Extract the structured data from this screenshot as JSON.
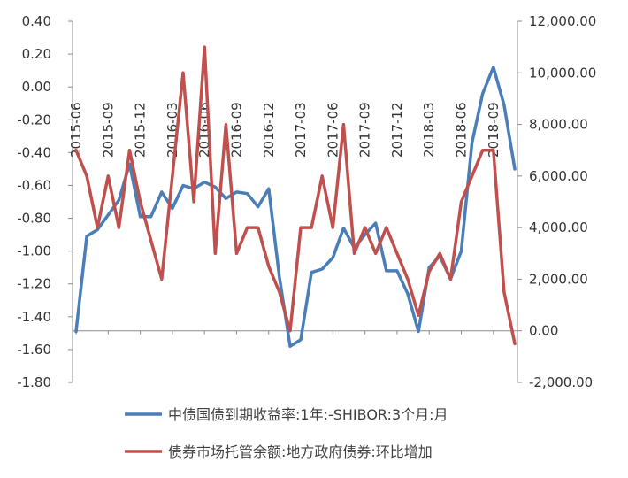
{
  "chart_data": {
    "type": "line",
    "x_tick_labels": [
      "2015-06",
      "2015-09",
      "2015-12",
      "2016-03",
      "2016-06",
      "2016-09",
      "2016-12",
      "2017-03",
      "2017-06",
      "2017-09",
      "2017-12",
      "2018-03",
      "2018-06",
      "2018-09"
    ],
    "left_axis": {
      "ylim": [
        -1.8,
        0.4
      ],
      "tick_labels": [
        "0.40",
        "0.20",
        "0.00",
        "-0.20",
        "-0.40",
        "-0.60",
        "-0.80",
        "-1.00",
        "-1.20",
        "-1.40",
        "-1.60",
        "-1.80"
      ]
    },
    "right_axis": {
      "ylim": [
        -2000,
        12000
      ],
      "tick_labels": [
        "12,000.00",
        "10,000.00",
        "8,000.00",
        "6,000.00",
        "4,000.00",
        "2,000.00",
        "0.00",
        "-2,000.00"
      ]
    },
    "grid": false,
    "legend_position": "bottom",
    "series": [
      {
        "name": "中债国债到期收益率:1年:-SHIBOR:3个月:月",
        "axis": "left",
        "color": "#4a7eb8",
        "values": [
          -1.49,
          -0.91,
          -0.87,
          -0.78,
          -0.69,
          -0.47,
          -0.79,
          -0.79,
          -0.64,
          -0.74,
          -0.6,
          -0.62,
          -0.58,
          -0.61,
          -0.68,
          -0.64,
          -0.65,
          -0.73,
          -0.62,
          -1.16,
          -1.58,
          -1.54,
          -1.13,
          -1.11,
          -1.04,
          -0.86,
          -0.98,
          -0.9,
          -0.83,
          -1.12,
          -1.12,
          -1.26,
          -1.49,
          -1.1,
          -1.03,
          -1.17,
          -1.0,
          -0.34,
          -0.04,
          0.12,
          -0.11,
          -0.5
        ]
      },
      {
        "name": "债券市场托管余额:地方政府债券:环比增加",
        "axis": "right",
        "color": "#c0504d",
        "values": [
          7000,
          6000,
          4000,
          6000,
          4000,
          7000,
          5000,
          3500,
          2000,
          6000,
          10000,
          5000,
          11000,
          3000,
          8000,
          3000,
          4000,
          4000,
          2500,
          1500,
          0,
          4000,
          4000,
          6000,
          4000,
          8000,
          3000,
          4000,
          3000,
          4000,
          3000,
          2000,
          600,
          2300,
          3000,
          2000,
          5000,
          6000,
          7000,
          7000,
          1500,
          -500
        ]
      }
    ]
  }
}
